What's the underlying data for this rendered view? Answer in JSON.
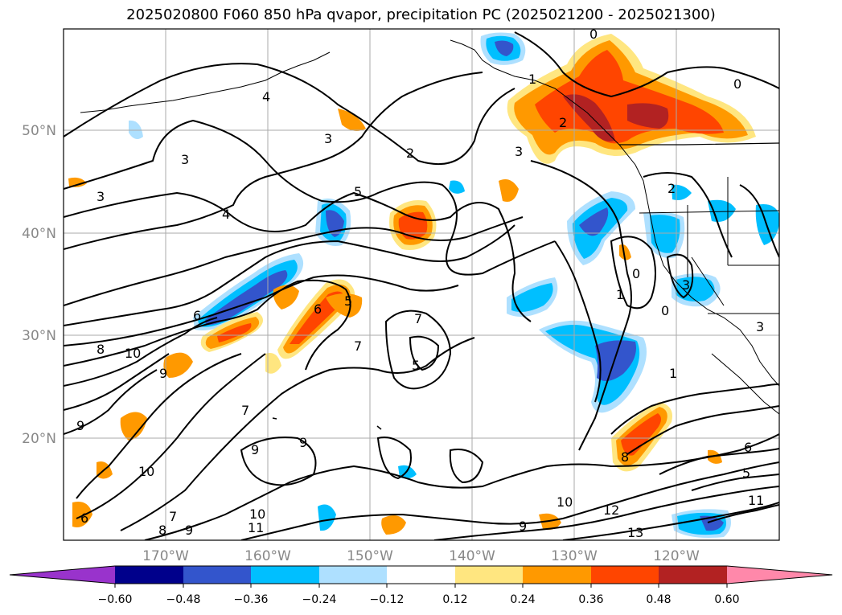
{
  "title": "2025020800 F060 850 hPa qvapor, precipitation PC (2025021200 - 2025021300)",
  "map": {
    "lon_range": [
      -180,
      -110
    ],
    "lat_range": [
      10,
      60
    ],
    "lat_ticks": [
      "50°N",
      "40°N",
      "30°N",
      "20°N"
    ],
    "lon_ticks": [
      "170°W",
      "160°W",
      "150°W",
      "140°W",
      "130°W",
      "120°W"
    ],
    "gridlines": true,
    "contour_labels": [
      "0",
      "0",
      "1",
      "2",
      "2",
      "3",
      "3",
      "3",
      "4",
      "4",
      "5",
      "6",
      "7",
      "7",
      "7",
      "8",
      "9",
      "10",
      "9",
      "10",
      "5",
      "7",
      "9",
      "9",
      "10",
      "12",
      "13",
      "11",
      "8",
      "6",
      "5",
      "1",
      "3",
      "0",
      "0",
      "2",
      "3",
      "6",
      "8",
      "9",
      "10",
      "11",
      "9",
      "5",
      "6",
      "1",
      "3"
    ]
  },
  "colorbar": {
    "ticks": [
      "−0.60",
      "−0.48",
      "−0.36",
      "−0.24",
      "−0.12",
      "0.12",
      "0.24",
      "0.36",
      "0.48",
      "0.60"
    ],
    "colors": [
      "#9933cc",
      "#00008b",
      "#3355cc",
      "#00bfff",
      "#aee0ff",
      "#ffffff",
      "#ffe680",
      "#ff9900",
      "#ff4500",
      "#b22222",
      "#ff88aa"
    ],
    "extend": "both"
  },
  "colors": {
    "negative_strong": "#3355cc",
    "negative": "#00bfff",
    "negative_weak": "#aee0ff",
    "positive_weak": "#ffe680",
    "positive": "#ff9900",
    "positive_strong": "#ff4500",
    "positive_max": "#b22222"
  }
}
